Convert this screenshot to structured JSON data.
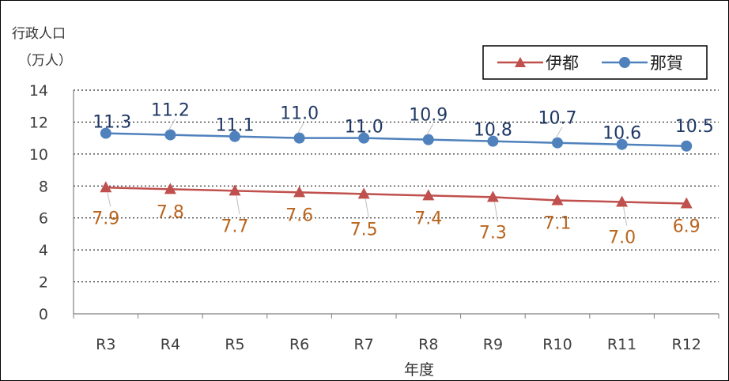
{
  "chart_data": {
    "type": "line",
    "ylabel_line1": "行政人口",
    "ylabel_line2": "（万人）",
    "xlabel": "年度",
    "categories": [
      "R3",
      "R4",
      "R5",
      "R6",
      "R7",
      "R8",
      "R9",
      "R10",
      "R11",
      "R12"
    ],
    "ylim": [
      0,
      14
    ],
    "yticks": [
      "0",
      "2",
      "4",
      "6",
      "8",
      "10",
      "12",
      "14"
    ],
    "grid": "horizontal dotted",
    "legend_position": "top-right",
    "series": [
      {
        "name": "伊都",
        "marker": "triangle",
        "color": "#C0504D",
        "label_color": "#B9651E",
        "values": [
          7.9,
          7.8,
          7.7,
          7.6,
          7.5,
          7.4,
          7.3,
          7.1,
          7.0,
          6.9
        ],
        "labels": [
          "7.9",
          "7.8",
          "7.7",
          "7.6",
          "7.5",
          "7.4",
          "7.3",
          "7.1",
          "7.0",
          "6.9"
        ]
      },
      {
        "name": "那賀",
        "marker": "circle",
        "color": "#4F81BD",
        "label_color": "#1F3864",
        "values": [
          11.3,
          11.2,
          11.1,
          11.0,
          11.0,
          10.9,
          10.8,
          10.7,
          10.6,
          10.5
        ],
        "labels": [
          "11.3",
          "11.2",
          "11.1",
          "11.0",
          "11.0",
          "10.9",
          "10.8",
          "10.7",
          "10.6",
          "10.5"
        ]
      }
    ]
  }
}
